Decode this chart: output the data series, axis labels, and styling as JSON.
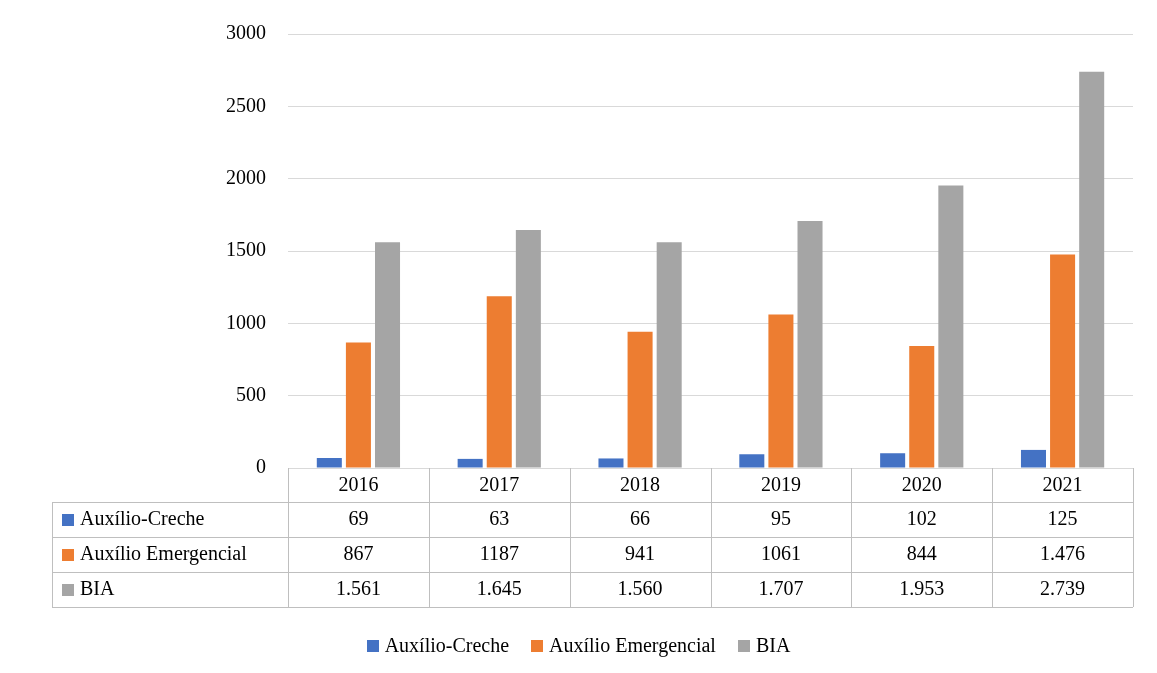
{
  "chart_data": {
    "type": "bar",
    "categories": [
      "2016",
      "2017",
      "2018",
      "2019",
      "2020",
      "2021"
    ],
    "series": [
      {
        "name": "Auxílio-Creche",
        "color": "#4472c4",
        "values": [
          69,
          63,
          66,
          95,
          102,
          125
        ],
        "value_labels": [
          "69",
          "63",
          "66",
          "95",
          "102",
          "125"
        ]
      },
      {
        "name": "Auxílio Emergencial",
        "color": "#ed7d31",
        "values": [
          867,
          1187,
          941,
          1061,
          844,
          1476
        ],
        "value_labels": [
          "867",
          "1187",
          "941",
          "1061",
          "844",
          "1.476"
        ]
      },
      {
        "name": "BIA",
        "color": "#a5a5a5",
        "values": [
          1561,
          1645,
          1560,
          1707,
          1953,
          2739
        ],
        "value_labels": [
          "1.561",
          "1.645",
          "1.560",
          "1.707",
          "1.953",
          "2.739"
        ]
      }
    ],
    "ylim": [
      0,
      3000
    ],
    "yticks": [
      0,
      500,
      1000,
      1500,
      2000,
      2500,
      3000
    ],
    "grid": "y",
    "legend": "bottom"
  }
}
